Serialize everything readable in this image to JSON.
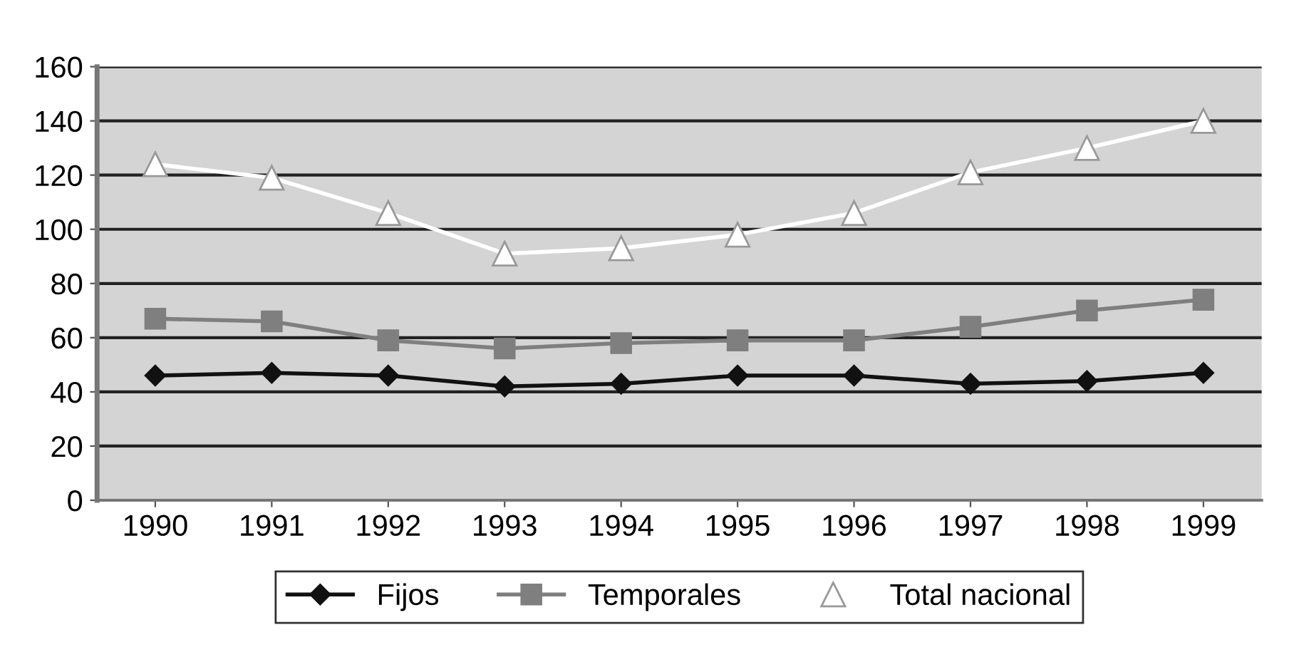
{
  "chart_data": {
    "type": "line",
    "categories": [
      "1990",
      "1991",
      "1992",
      "1993",
      "1994",
      "1995",
      "1996",
      "1997",
      "1998",
      "1999"
    ],
    "series": [
      {
        "name": "Fijos",
        "color": "#111111",
        "marker": "diamond",
        "values": [
          46,
          47,
          46,
          42,
          43,
          46,
          46,
          43,
          44,
          47
        ]
      },
      {
        "name": "Temporales",
        "color": "#7f7f7f",
        "marker": "square",
        "values": [
          67,
          66,
          59,
          56,
          58,
          59,
          59,
          64,
          70,
          74
        ]
      },
      {
        "name": "Total nacional",
        "color": "#ffffff",
        "marker": "triangle",
        "values": [
          124,
          119,
          106,
          91,
          93,
          98,
          106,
          121,
          130,
          140
        ]
      }
    ],
    "ylim": [
      0,
      160
    ],
    "yticks": [
      0,
      20,
      40,
      60,
      80,
      100,
      120,
      140,
      160
    ],
    "grid": "y",
    "legend": "bottom"
  }
}
